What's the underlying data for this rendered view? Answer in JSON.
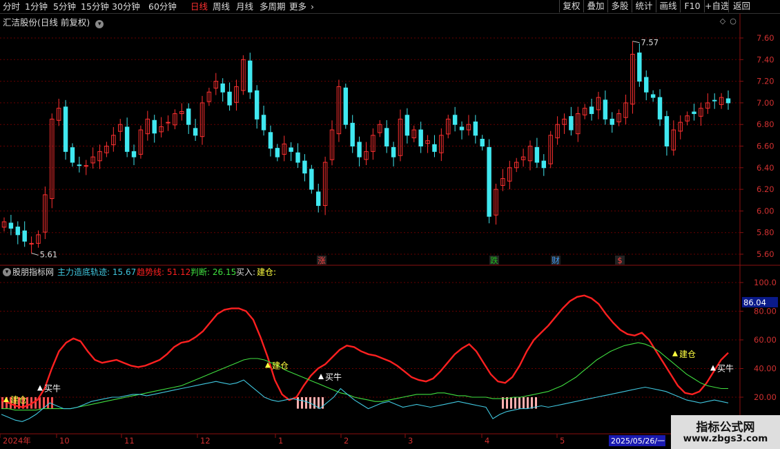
{
  "toolbar": {
    "timeframes": [
      "分时",
      "1分钟",
      "5分钟",
      "15分钟",
      "30分钟",
      "60分钟",
      "日线",
      "周线",
      "月线",
      "多周期",
      "更多"
    ],
    "active_timeframe": "日线",
    "buttons": [
      "复权",
      "叠加",
      "多股",
      "统计",
      "画线",
      "F10",
      "+自选",
      "返回"
    ]
  },
  "price_panel": {
    "title": "汇洁股份(日线 前复权)",
    "high_label": "7.57",
    "low_label": "5.61",
    "axis_ticks": [
      "7.60",
      "7.40",
      "7.20",
      "7.00",
      "6.80",
      "6.60",
      "6.40",
      "6.20",
      "6.00",
      "5.80",
      "5.60"
    ],
    "event_markers": [
      {
        "text": "涨",
        "color": "#ff4040"
      },
      {
        "text": "跌",
        "color": "#20c020"
      },
      {
        "text": "财",
        "color": "#40a0ff"
      },
      {
        "text": "$",
        "color": "#ff4040"
      }
    ]
  },
  "indicator_panel": {
    "name": "股朋指标网",
    "legend": [
      {
        "label": "主力造底轨迹: 15.67",
        "color": "#40c8e0"
      },
      {
        "label": "趋势线: 51.12",
        "color": "#ff2020"
      },
      {
        "label": "判断: 26.15",
        "color": "#40e040"
      },
      {
        "label": "买入:",
        "color": "#dddddd"
      },
      {
        "label": "建仓:",
        "color": "#ffff40"
      }
    ],
    "axis_ticks": [
      "100.0",
      "80.00",
      "60.00",
      "40.00",
      "20.00"
    ],
    "current_value": "86.04",
    "signals": [
      {
        "text": "建仓",
        "color": "#ffff40"
      },
      {
        "text": "买牛",
        "color": "#ffffff"
      },
      {
        "text": "建仓",
        "color": "#ffff40"
      },
      {
        "text": "买牛",
        "color": "#ffffff"
      },
      {
        "text": "建仓",
        "color": "#ffff40"
      },
      {
        "text": "买牛",
        "color": "#ffffff"
      }
    ]
  },
  "date_axis": {
    "labels": [
      "2024年",
      "10",
      "11",
      "12",
      "1",
      "2",
      "3",
      "4",
      "5"
    ],
    "cursor_date": "2025/05/26/一"
  },
  "watermark": {
    "line1": "指标公式网",
    "line2": "www.zbgs3.com"
  },
  "chart_data": [
    {
      "type": "candlestick",
      "title": "汇洁股份(日线 前复权)",
      "ylim": [
        5.55,
        7.65
      ],
      "y_ticks": [
        7.6,
        7.4,
        7.2,
        7.0,
        6.8,
        6.6,
        6.4,
        6.2,
        6.0,
        5.8,
        5.6
      ],
      "x_month_labels": [
        "2024年",
        "10",
        "11",
        "12",
        "1",
        "2",
        "3",
        "4",
        "5"
      ],
      "annotations": [
        {
          "text": "7.57",
          "value": 7.57,
          "kind": "high"
        },
        {
          "text": "5.61",
          "value": 5.61,
          "kind": "low"
        }
      ],
      "close_path": [
        5.9,
        5.84,
        5.78,
        5.72,
        5.7,
        5.78,
        6.15,
        6.85,
        6.95,
        6.55,
        6.45,
        6.42,
        6.42,
        6.5,
        6.55,
        6.6,
        6.7,
        6.8,
        6.55,
        6.5,
        6.75,
        6.85,
        6.72,
        6.78,
        6.82,
        6.9,
        6.92,
        6.8,
        6.7,
        7.0,
        7.1,
        7.2,
        7.1,
        6.98,
        7.15,
        7.4,
        7.1,
        6.85,
        6.75,
        6.58,
        6.5,
        6.62,
        6.55,
        6.45,
        6.35,
        6.2,
        6.05,
        6.45,
        6.75,
        7.15,
        6.8,
        6.6,
        6.5,
        6.55,
        6.7,
        6.8,
        6.6,
        6.5,
        6.85,
        6.7,
        6.75,
        6.6,
        6.65,
        6.55,
        6.7,
        6.85,
        6.8,
        6.75,
        6.8,
        6.7,
        6.6,
        5.95,
        6.2,
        6.3,
        6.4,
        6.45,
        6.5,
        6.6,
        6.45,
        6.4,
        6.7,
        6.8,
        6.85,
        6.75,
        6.9,
        6.95,
        6.9,
        7.05,
        6.85,
        6.8,
        6.9,
        7.0,
        7.45,
        7.2,
        7.1,
        7.05,
        6.85,
        6.6,
        6.75,
        6.82,
        6.88,
        6.9,
        6.95,
        7.0,
        7.02,
        7.05,
        7.0
      ],
      "series": [
        {
          "name": "",
          "color_up": "#ff3030",
          "color_down": "#40e8f0"
        }
      ]
    },
    {
      "type": "line",
      "title": "股朋指标网",
      "ylim": [
        0,
        105
      ],
      "y_ticks": [
        100,
        80,
        60,
        40,
        20
      ],
      "series": [
        {
          "name": "趋势线",
          "color": "#ff2020",
          "last": 51.12,
          "values": [
            18,
            16,
            14,
            13,
            15,
            18,
            26,
            40,
            52,
            58,
            61,
            59,
            52,
            46,
            44,
            45,
            46,
            44,
            42,
            41,
            42,
            44,
            46,
            50,
            55,
            58,
            59,
            62,
            66,
            72,
            78,
            81,
            82,
            82,
            80,
            74,
            62,
            48,
            32,
            22,
            18,
            20,
            28,
            35,
            40,
            43,
            48,
            53,
            56,
            55,
            52,
            50,
            49,
            47,
            45,
            42,
            38,
            34,
            32,
            31,
            33,
            38,
            44,
            50,
            54,
            57,
            52,
            44,
            36,
            31,
            30,
            34,
            42,
            52,
            60,
            65,
            70,
            76,
            82,
            87,
            90,
            91,
            89,
            85,
            78,
            72,
            67,
            64,
            63,
            65,
            60,
            52,
            44,
            36,
            28,
            23,
            22,
            24,
            30,
            38,
            46,
            51
          ]
        },
        {
          "name": "判断",
          "color": "#40e040",
          "last": 26.15,
          "values": [
            12,
            12,
            11,
            11,
            11,
            11,
            12,
            12,
            12,
            12,
            12,
            13,
            14,
            15,
            16,
            17,
            18,
            19,
            20,
            21,
            22,
            23,
            24,
            25,
            26,
            27,
            28,
            30,
            32,
            34,
            36,
            38,
            40,
            42,
            44,
            46,
            47,
            47,
            46,
            44,
            42,
            39,
            37,
            35,
            33,
            31,
            29,
            27,
            25,
            23,
            22,
            20,
            19,
            18,
            17,
            17,
            18,
            19,
            20,
            21,
            22,
            22,
            22,
            23,
            23,
            22,
            21,
            21,
            20,
            20,
            20,
            19,
            19,
            19,
            20,
            20,
            21,
            22,
            23,
            24,
            26,
            28,
            31,
            34,
            38,
            42,
            46,
            49,
            52,
            54,
            56,
            57,
            58,
            57,
            55,
            52,
            48,
            44,
            40,
            36,
            33,
            30,
            28,
            27,
            26,
            26
          ]
        },
        {
          "name": "主力造底轨迹",
          "color": "#40c8e0",
          "last": 15.67,
          "values": [
            8,
            6,
            4,
            3,
            5,
            8,
            12,
            16,
            14,
            12,
            12,
            13,
            15,
            17,
            18,
            19,
            20,
            20,
            21,
            22,
            22,
            21,
            22,
            23,
            24,
            25,
            26,
            27,
            28,
            29,
            30,
            31,
            30,
            29,
            30,
            32,
            28,
            24,
            20,
            18,
            17,
            18,
            19,
            18,
            17,
            15,
            12,
            16,
            20,
            26,
            22,
            18,
            15,
            12,
            14,
            16,
            17,
            15,
            13,
            14,
            15,
            14,
            13,
            14,
            15,
            16,
            17,
            16,
            15,
            14,
            13,
            5,
            8,
            10,
            11,
            12,
            12,
            13,
            14,
            13,
            14,
            15,
            16,
            17,
            18,
            19,
            20,
            21,
            22,
            23,
            24,
            25,
            26,
            27,
            26,
            25,
            24,
            22,
            20,
            18,
            17,
            16,
            17,
            18,
            17,
            16
          ]
        }
      ],
      "markers": [
        {
          "text": "建仓",
          "value": 18
        },
        {
          "text": "买牛",
          "value": 26
        },
        {
          "text": "建仓",
          "value": 42
        },
        {
          "text": "买牛",
          "value": 34
        },
        {
          "text": "建仓",
          "value": 50
        },
        {
          "text": "买牛",
          "value": 40
        }
      ],
      "current_value": 86.04
    }
  ]
}
